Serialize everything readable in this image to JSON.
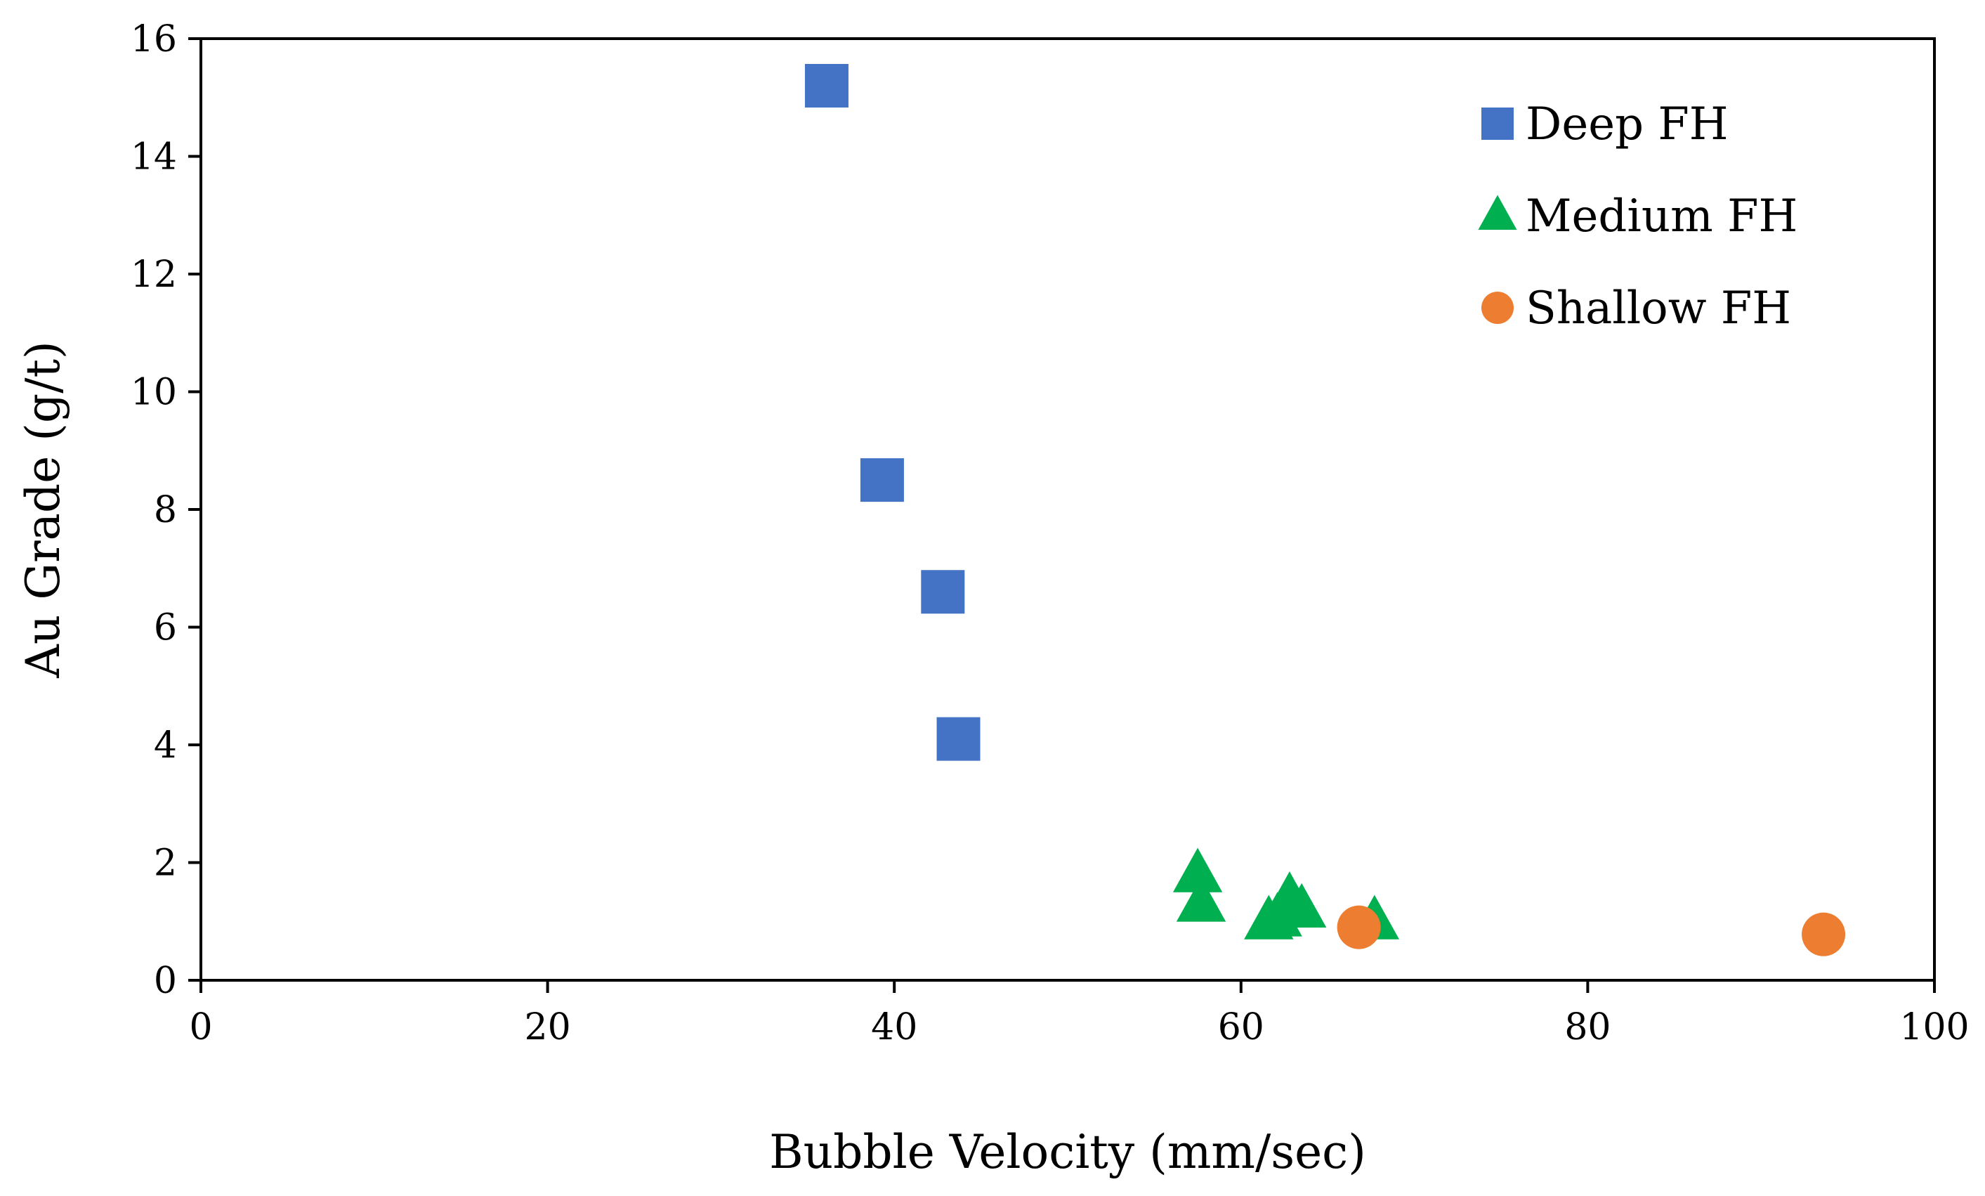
{
  "chart_data": {
    "type": "scatter",
    "title": "",
    "xlabel": "Bubble Velocity (mm/sec)",
    "ylabel": "Au Grade (g/t)",
    "xlim": [
      0,
      100
    ],
    "ylim": [
      0,
      16
    ],
    "xticks": [
      0,
      20,
      40,
      60,
      80,
      100
    ],
    "yticks": [
      0,
      2,
      4,
      6,
      8,
      10,
      12,
      14,
      16
    ],
    "grid": false,
    "legend_position": "top-right",
    "series": [
      {
        "name": "Deep FH",
        "marker": "square",
        "color": "#4472C4",
        "points": [
          {
            "x": 36.1,
            "y": 15.2
          },
          {
            "x": 39.3,
            "y": 8.5
          },
          {
            "x": 42.8,
            "y": 6.6
          },
          {
            "x": 43.7,
            "y": 4.1
          }
        ]
      },
      {
        "name": "Medium FH",
        "marker": "triangle",
        "color": "#00B050",
        "points": [
          {
            "x": 57.5,
            "y": 1.8
          },
          {
            "x": 57.7,
            "y": 1.3
          },
          {
            "x": 61.6,
            "y": 1.0
          },
          {
            "x": 62.1,
            "y": 1.05
          },
          {
            "x": 62.8,
            "y": 1.4
          },
          {
            "x": 63.5,
            "y": 1.2
          },
          {
            "x": 67.7,
            "y": 1.0
          }
        ]
      },
      {
        "name": "Shallow FH",
        "marker": "circle",
        "color": "#ED7D31",
        "points": [
          {
            "x": 66.8,
            "y": 0.9
          },
          {
            "x": 93.6,
            "y": 0.78
          }
        ]
      }
    ]
  }
}
